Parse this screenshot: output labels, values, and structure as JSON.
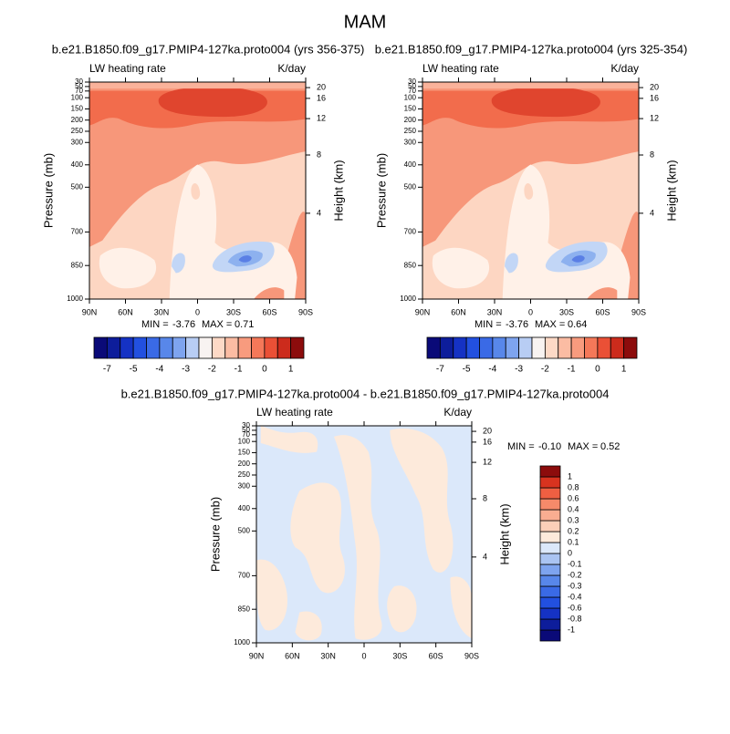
{
  "title": "MAM",
  "chart_data": [
    {
      "type": "contour",
      "title": "b.e21.B1850.f09_g17.PMIP4-127ka.proto004 (yrs 356-375)",
      "left_label": "LW heating rate",
      "right_label": "K/day",
      "ylabel": "Pressure (mb)",
      "y2label": "Height (km)",
      "xlim": [
        90,
        -90
      ],
      "xticks": [
        {
          "value": 90,
          "label": "90N"
        },
        {
          "value": 60,
          "label": "60N"
        },
        {
          "value": 30,
          "label": "30N"
        },
        0,
        {
          "value": -30,
          "label": "30S"
        },
        {
          "value": -60,
          "label": "60S"
        },
        {
          "value": -90,
          "label": "90S"
        }
      ],
      "ylim": [
        1000,
        30
      ],
      "yticks": [
        1000,
        850,
        700,
        500,
        400,
        300,
        250,
        200,
        150,
        100,
        70,
        50,
        30
      ],
      "y2ticks": [
        4,
        8,
        12,
        16,
        20
      ],
      "min_label": "MIN =",
      "min": -3.76,
      "max_label": "MAX =",
      "max": 0.71,
      "colorbar": {
        "orientation": "horizontal",
        "colors": [
          "#0a0a78",
          "#0d1d9b",
          "#1532c4",
          "#2250e0",
          "#3a6ae6",
          "#5887ea",
          "#7ea4ef",
          "#b8cdf4",
          "#f8f3f1",
          "#fdd9c6",
          "#fbbca3",
          "#f89b7e",
          "#f47859",
          "#ea5036",
          "#cc2b1c",
          "#8c0c0c"
        ],
        "labels": [
          -7,
          -5,
          -4,
          -3,
          -2,
          -1,
          0,
          1
        ]
      }
    },
    {
      "type": "contour",
      "title": "b.e21.B1850.f09_g17.PMIP4-127ka.proto004 (yrs 325-354)",
      "left_label": "LW heating rate",
      "right_label": "K/day",
      "ylabel": "Pressure (mb)",
      "y2label": "Height (km)",
      "xlim": [
        90,
        -90
      ],
      "xticks": [
        {
          "value": 90,
          "label": "90N"
        },
        {
          "value": 60,
          "label": "60N"
        },
        {
          "value": 30,
          "label": "30N"
        },
        0,
        {
          "value": -30,
          "label": "30S"
        },
        {
          "value": -60,
          "label": "60S"
        },
        {
          "value": -90,
          "label": "90S"
        }
      ],
      "ylim": [
        1000,
        30
      ],
      "yticks": [
        1000,
        850,
        700,
        500,
        400,
        300,
        250,
        200,
        150,
        100,
        70,
        50,
        30
      ],
      "y2ticks": [
        4,
        8,
        12,
        16,
        20
      ],
      "min_label": "MIN =",
      "min": -3.76,
      "max_label": "MAX =",
      "max": 0.64,
      "colorbar": {
        "orientation": "horizontal",
        "colors": [
          "#0a0a78",
          "#0d1d9b",
          "#1532c4",
          "#2250e0",
          "#3a6ae6",
          "#5887ea",
          "#7ea4ef",
          "#b8cdf4",
          "#f8f3f1",
          "#fdd9c6",
          "#fbbca3",
          "#f89b7e",
          "#f47859",
          "#ea5036",
          "#cc2b1c",
          "#8c0c0c"
        ],
        "labels": [
          -7,
          -5,
          -4,
          -3,
          -2,
          -1,
          0,
          1
        ]
      }
    },
    {
      "type": "contour",
      "title": "b.e21.B1850.f09_g17.PMIP4-127ka.proto004 - b.e21.B1850.f09_g17.PMIP4-127ka.proto004",
      "left_label": "LW heating rate",
      "right_label": "K/day",
      "ylabel": "Pressure (mb)",
      "y2label": "Height (km)",
      "xlim": [
        90,
        -90
      ],
      "xticks": [
        {
          "value": 90,
          "label": "90N"
        },
        {
          "value": 60,
          "label": "60N"
        },
        {
          "value": 30,
          "label": "30N"
        },
        0,
        {
          "value": -30,
          "label": "30S"
        },
        {
          "value": -60,
          "label": "60S"
        },
        {
          "value": -90,
          "label": "90S"
        }
      ],
      "ylim": [
        1000,
        30
      ],
      "yticks": [
        1000,
        850,
        700,
        500,
        400,
        300,
        250,
        200,
        150,
        100,
        70,
        50,
        30
      ],
      "y2ticks": [
        4,
        8,
        12,
        16,
        20
      ],
      "min_label": "MIN =",
      "min": {
        "value": -0.1,
        "label": "-0.10"
      },
      "max_label": "MAX =",
      "max": 0.52,
      "colorbar": {
        "orientation": "vertical",
        "colors": [
          "#0a0a78",
          "#0d1d9b",
          "#1532c4",
          "#2250e0",
          "#3a6ae6",
          "#5887ea",
          "#7ea4ef",
          "#aac4f2",
          "#dbe8fa",
          "#fdeadb",
          "#fccfb8",
          "#f9ad91",
          "#f68a6a",
          "#ef5f42",
          "#d8331f",
          "#8c0c0c"
        ],
        "labels": [
          -1,
          -0.8,
          -0.6,
          -0.4,
          -0.3,
          -0.2,
          -0.1,
          0,
          0.1,
          0.2,
          0.3,
          0.4,
          0.6,
          0.8,
          1
        ]
      }
    }
  ]
}
